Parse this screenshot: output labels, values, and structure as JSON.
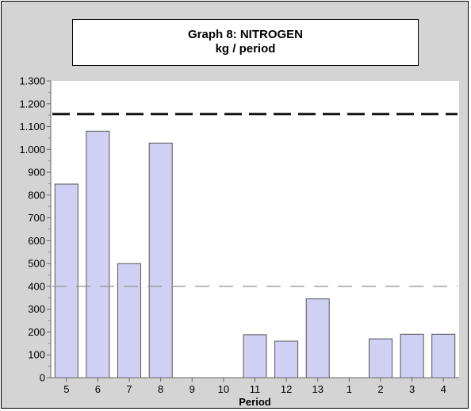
{
  "chart_data": {
    "type": "bar",
    "title": "Graph 8: NITROGEN",
    "subtitle": "kg / period",
    "xlabel": "Period",
    "ylabel": "",
    "categories": [
      "5",
      "6",
      "7",
      "8",
      "9",
      "10",
      "11",
      "12",
      "13",
      "1",
      "2",
      "3",
      "4"
    ],
    "values": [
      848,
      1080,
      500,
      1028,
      0,
      0,
      188,
      160,
      345,
      0,
      170,
      190,
      190
    ],
    "reference_lines": [
      {
        "value": 1155,
        "style": "dashed-thick",
        "color": "#111111"
      },
      {
        "value": 400,
        "style": "dashed-thin",
        "color": "#999999"
      }
    ],
    "ylim": [
      0,
      1300
    ],
    "yticks": [
      0,
      100,
      200,
      300,
      400,
      500,
      600,
      700,
      800,
      900,
      1000,
      1100,
      1200,
      1300
    ],
    "ytick_labels": [
      "0",
      "100",
      "200",
      "300",
      "400",
      "500",
      "600",
      "700",
      "800",
      "900",
      "1.000",
      "1.100",
      "1.200",
      "1.300"
    ],
    "grid": false,
    "bar_color": "#d0d0f4",
    "bar_edge_color": "#555555"
  }
}
